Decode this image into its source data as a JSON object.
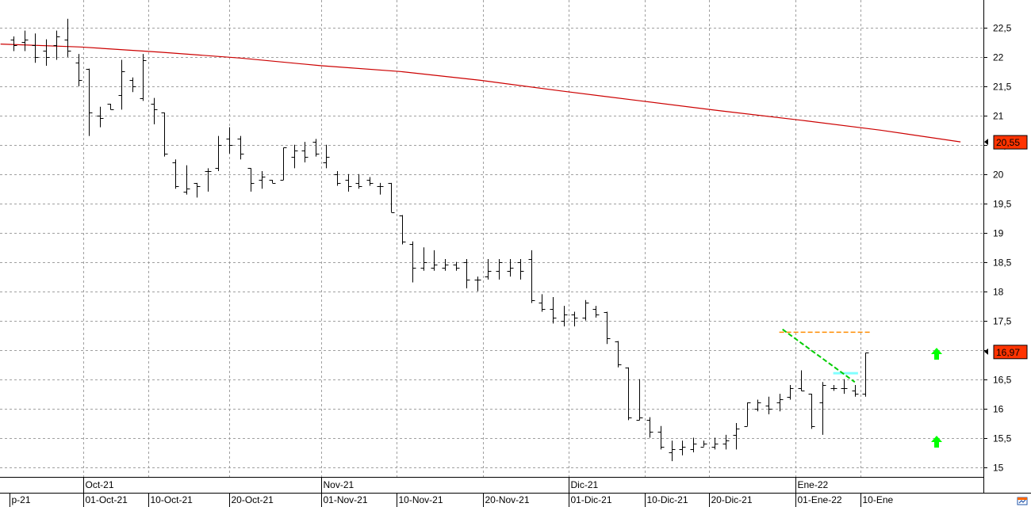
{
  "chart_data": {
    "type": "ohlc-bar",
    "title": "",
    "ylim": [
      14.8,
      22.8
    ],
    "y_ticks": [
      "22,5",
      "22",
      "21,5",
      "21",
      "20,5",
      "20",
      "19,5",
      "19",
      "18,5",
      "18",
      "17,5",
      "17",
      "16,5",
      "16",
      "15,5",
      "15"
    ],
    "y_tick_values": [
      22.5,
      22,
      21.5,
      21,
      20.5,
      20,
      19.5,
      19,
      18.5,
      18,
      17.5,
      17,
      16.5,
      16,
      15.5,
      15
    ],
    "month_labels": [
      {
        "label": "Oct-21",
        "bar": 6.5
      },
      {
        "label": "Nov-21",
        "bar": 28.5
      },
      {
        "label": "Dic-21",
        "bar": 51.5
      },
      {
        "label": "Ene-22",
        "bar": 72.5
      }
    ],
    "date_labels": [
      {
        "label": "p-21",
        "bar": -0.4
      },
      {
        "label": "01-Oct-21",
        "bar": 6.5
      },
      {
        "label": "10-Oct-21",
        "bar": 12.5
      },
      {
        "label": "20-Oct-21",
        "bar": 20
      },
      {
        "label": "01-Nov-21",
        "bar": 28.5
      },
      {
        "label": "10-Nov-21",
        "bar": 35.5
      },
      {
        "label": "20-Nov-21",
        "bar": 43.5
      },
      {
        "label": "01-Dic-21",
        "bar": 51.5
      },
      {
        "label": "10-Dic-21",
        "bar": 58.5
      },
      {
        "label": "20-Dic-21",
        "bar": 64.5
      },
      {
        "label": "01-Ene-22",
        "bar": 72.5
      },
      {
        "label": "10-Ene",
        "bar": 78.5
      }
    ],
    "bars": [
      [
        22.3,
        22.35,
        22.1,
        22.2
      ],
      [
        22.25,
        22.45,
        22.1,
        22.3
      ],
      [
        22.2,
        22.4,
        21.9,
        22.0
      ],
      [
        22.1,
        22.3,
        21.85,
        22.0
      ],
      [
        22.2,
        22.45,
        21.95,
        22.35
      ],
      [
        22.3,
        22.65,
        22.0,
        22.1
      ],
      [
        21.9,
        22.05,
        21.5,
        21.6
      ],
      [
        21.8,
        21.8,
        20.65,
        21.05
      ],
      [
        21.0,
        21.15,
        20.8,
        20.95
      ],
      [
        21.2,
        21.2,
        21.1,
        21.1
      ],
      [
        21.35,
        21.95,
        21.1,
        21.75
      ],
      [
        21.6,
        21.65,
        21.4,
        21.5
      ],
      [
        21.3,
        22.05,
        21.25,
        21.95
      ],
      [
        21.2,
        21.3,
        20.85,
        21.1
      ],
      [
        21.05,
        21.05,
        20.3,
        20.35
      ],
      [
        20.2,
        20.25,
        19.75,
        19.8
      ],
      [
        19.7,
        20.15,
        19.65,
        19.75
      ],
      [
        19.85,
        19.85,
        19.6,
        19.8
      ],
      [
        20.05,
        20.1,
        19.7,
        20.05
      ],
      [
        20.1,
        20.65,
        20.05,
        20.5
      ],
      [
        20.6,
        20.8,
        20.35,
        20.5
      ],
      [
        20.6,
        20.65,
        20.25,
        20.35
      ],
      [
        20.1,
        20.1,
        19.7,
        19.85
      ],
      [
        19.9,
        20.05,
        19.75,
        19.95
      ],
      [
        19.9,
        19.9,
        19.85,
        19.85
      ],
      [
        19.9,
        20.45,
        19.9,
        20.45
      ],
      [
        20.3,
        20.5,
        20.1,
        20.4
      ],
      [
        20.4,
        20.55,
        20.2,
        20.3
      ],
      [
        20.55,
        20.6,
        20.3,
        20.35
      ],
      [
        20.2,
        20.5,
        20.1,
        20.3
      ],
      [
        20.0,
        20.05,
        19.8,
        19.85
      ],
      [
        19.9,
        20.0,
        19.7,
        19.8
      ],
      [
        19.85,
        20.0,
        19.75,
        19.8
      ],
      [
        19.9,
        19.95,
        19.8,
        19.85
      ],
      [
        19.8,
        19.85,
        19.65,
        19.8
      ],
      [
        19.85,
        19.85,
        19.35,
        19.35
      ],
      [
        19.3,
        19.3,
        18.8,
        18.85
      ],
      [
        18.8,
        18.85,
        18.15,
        18.4
      ],
      [
        18.4,
        18.75,
        18.35,
        18.5
      ],
      [
        18.4,
        18.7,
        18.35,
        18.45
      ],
      [
        18.4,
        18.55,
        18.35,
        18.45
      ],
      [
        18.45,
        18.5,
        18.35,
        18.4
      ],
      [
        18.5,
        18.55,
        18.05,
        18.2
      ],
      [
        18.2,
        18.25,
        18.0,
        18.2
      ],
      [
        18.25,
        18.55,
        18.2,
        18.35
      ],
      [
        18.35,
        18.55,
        18.2,
        18.5
      ],
      [
        18.35,
        18.55,
        18.25,
        18.4
      ],
      [
        18.5,
        18.55,
        18.2,
        18.35
      ],
      [
        18.55,
        18.7,
        17.8,
        17.85
      ],
      [
        17.8,
        17.95,
        17.65,
        17.7
      ],
      [
        17.7,
        17.9,
        17.45,
        17.55
      ],
      [
        17.5,
        17.75,
        17.4,
        17.6
      ],
      [
        17.6,
        17.65,
        17.4,
        17.55
      ],
      [
        17.55,
        17.85,
        17.5,
        17.8
      ],
      [
        17.7,
        17.75,
        17.55,
        17.6
      ],
      [
        17.65,
        17.65,
        17.1,
        17.2
      ],
      [
        17.15,
        17.15,
        16.7,
        16.75
      ],
      [
        16.7,
        16.7,
        15.8,
        15.85
      ],
      [
        15.8,
        16.5,
        15.8,
        15.85
      ],
      [
        15.8,
        15.85,
        15.5,
        15.6
      ],
      [
        15.6,
        15.7,
        15.3,
        15.35
      ],
      [
        15.25,
        15.45,
        15.1,
        15.3
      ],
      [
        15.3,
        15.45,
        15.2,
        15.35
      ],
      [
        15.3,
        15.5,
        15.25,
        15.4
      ],
      [
        15.35,
        15.45,
        15.35,
        15.4
      ],
      [
        15.35,
        15.5,
        15.3,
        15.4
      ],
      [
        15.4,
        15.55,
        15.3,
        15.45
      ],
      [
        15.55,
        15.75,
        15.3,
        15.65
      ],
      [
        15.7,
        16.1,
        15.7,
        16.1
      ],
      [
        16.0,
        16.15,
        15.95,
        16.1
      ],
      [
        16.05,
        16.2,
        15.9,
        16.0
      ],
      [
        16.1,
        16.25,
        15.95,
        16.15
      ],
      [
        16.2,
        16.4,
        16.15,
        16.35
      ],
      [
        16.35,
        16.65,
        16.3,
        16.3
      ],
      [
        16.25,
        16.25,
        15.65,
        15.7
      ],
      [
        16.1,
        16.45,
        15.55,
        16.4
      ],
      [
        16.35,
        16.4,
        16.3,
        16.35
      ],
      [
        16.35,
        16.5,
        16.25,
        16.35
      ],
      [
        16.3,
        16.4,
        16.2,
        16.25
      ],
      [
        16.25,
        16.95,
        16.2,
        16.95
      ]
    ],
    "moving_average": [
      22.22,
      22.17,
      22.08,
      21.98,
      21.85,
      21.75,
      21.6,
      21.42,
      21.25,
      21.08,
      20.92,
      20.75,
      20.55
    ],
    "markers": [
      {
        "type": "up-arrow",
        "x_bar": 78.5,
        "y": 16.95,
        "color": "#00ff00"
      },
      {
        "type": "up-arrow",
        "x_bar": 78.5,
        "y": 15.45,
        "color": "#00ff00"
      }
    ],
    "horizontal_level": {
      "y": 17.3,
      "from_bar": 71,
      "to_bar": 79.5,
      "color": "#ff8c00"
    },
    "trendline": {
      "x0_bar": 71.3,
      "y0": 17.35,
      "x1_bar": 78.0,
      "y1": 16.45,
      "color": "#00cc00"
    },
    "cyan_segment": {
      "y": 16.6,
      "from_bar": 76,
      "to_bar": 78.3,
      "color": "#80ffff"
    },
    "last_price": {
      "value": 16.97,
      "label": "16,97",
      "color": "#ff3300"
    },
    "ma_price": {
      "value": 20.55,
      "label": "20,55",
      "color": "#ff3300"
    },
    "colors": {
      "bars": "#000000",
      "ma": "#cc0000",
      "grid": "#a0a0a0",
      "badge": "#ff3300"
    }
  },
  "icons": {
    "corner": "sheet-refresh-icon"
  }
}
